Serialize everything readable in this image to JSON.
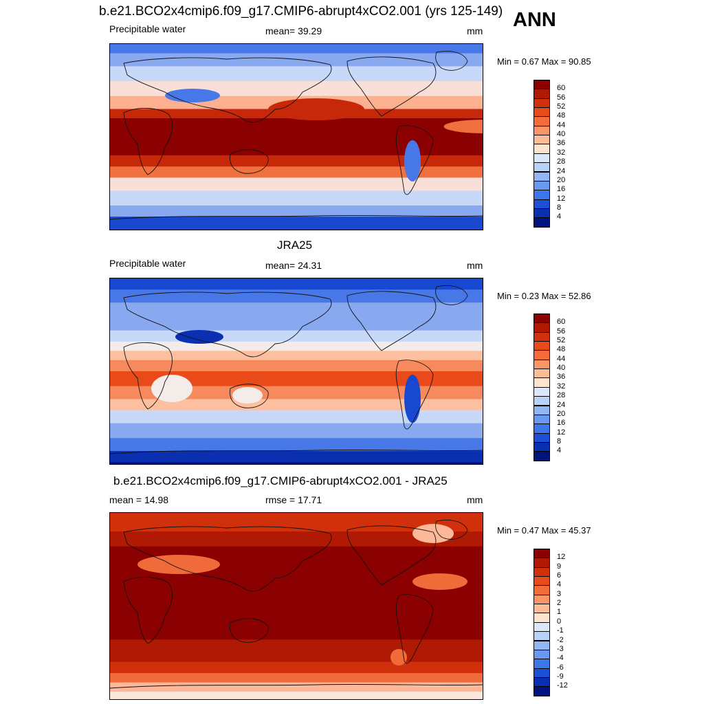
{
  "header": {
    "ann": "ANN"
  },
  "panels": [
    {
      "id": "model",
      "title": "b.e21.BCO2x4cmip6.f09_g17.CMIP6-abrupt4xCO2.001 (yrs 125-149)",
      "left_label": "Precipitable water",
      "center_label": "mean=  39.29",
      "units": "mm",
      "minmax": "Min =   0.67 Max =  90.85",
      "colorbar": {
        "ticks": [
          "60",
          "56",
          "52",
          "48",
          "44",
          "40",
          "36",
          "32",
          "28",
          "24",
          "20",
          "16",
          "12",
          "8",
          "4"
        ],
        "colors": [
          "#8b0000",
          "#b01a04",
          "#d0300c",
          "#e84a1a",
          "#f56c3b",
          "#fb9566",
          "#fcbc98",
          "#fde4d2",
          "#dbe8fb",
          "#b9d3f8",
          "#92b6f4",
          "#6898ef",
          "#3d76ea",
          "#1b4fd8",
          "#0a2fb0",
          "#00137f"
        ]
      },
      "map_palette": [
        "#8b0000",
        "#c8280a",
        "#f07040",
        "#fcb090",
        "#f8e0d8",
        "#c8d8f8",
        "#88a8f0",
        "#4878e8",
        "#1848d0",
        "#00137f"
      ]
    },
    {
      "id": "obs",
      "title": "JRA25",
      "left_label": "Precipitable water",
      "center_label": "mean=  24.31",
      "units": "mm",
      "minmax": "Min =   0.23 Max =  52.86",
      "colorbar": {
        "ticks": [
          "60",
          "56",
          "52",
          "48",
          "44",
          "40",
          "36",
          "32",
          "28",
          "24",
          "20",
          "16",
          "12",
          "8",
          "4"
        ],
        "colors": [
          "#8b0000",
          "#b01a04",
          "#d0300c",
          "#e84a1a",
          "#f56c3b",
          "#fb9566",
          "#fcbc98",
          "#fde4d2",
          "#dbe8fb",
          "#b9d3f8",
          "#92b6f4",
          "#6898ef",
          "#3d76ea",
          "#1b4fd8",
          "#0a2fb0",
          "#00137f"
        ]
      },
      "map_palette": [
        "#e84a1a",
        "#f78a5c",
        "#fcc0a0",
        "#f3ece8",
        "#c8d8f8",
        "#88a8f0",
        "#4878e8",
        "#1848d0",
        "#0a2fb0",
        "#00137f"
      ]
    },
    {
      "id": "diff",
      "title": "b.e21.BCO2x4cmip6.f09_g17.CMIP6-abrupt4xCO2.001 - JRA25",
      "left_label": "mean =  14.98",
      "center_label": "rmse =  17.71",
      "units": "mm",
      "minmax": "Min =   0.47 Max =  45.37",
      "colorbar": {
        "ticks": [
          "12",
          "9",
          "6",
          "4",
          "3",
          "2",
          "1",
          "0",
          "-1",
          "-2",
          "-3",
          "-4",
          "-6",
          "-9",
          "-12"
        ],
        "colors": [
          "#8b0000",
          "#b01a04",
          "#d0300c",
          "#e84a1a",
          "#f56c3b",
          "#fb9566",
          "#fcbc98",
          "#fde4d2",
          "#dbe8fb",
          "#b9d3f8",
          "#92b6f4",
          "#6898ef",
          "#3d76ea",
          "#1b4fd8",
          "#0a2fb0",
          "#00137f"
        ]
      },
      "map_palette": [
        "#8b0000",
        "#b01a04",
        "#d0300c",
        "#f06a3a",
        "#fcb898",
        "#fbe6dc"
      ]
    }
  ],
  "chart_data": [
    {
      "type": "heatmap",
      "title": "b.e21.BCO2x4cmip6.f09_g17.CMIP6-abrupt4xCO2.001 (yrs 125-149)",
      "variable": "Precipitable water",
      "units": "mm",
      "mean": 39.29,
      "min": 0.67,
      "max": 90.85,
      "contour_levels": [
        4,
        8,
        12,
        16,
        20,
        24,
        28,
        32,
        36,
        40,
        44,
        48,
        52,
        56,
        60
      ]
    },
    {
      "type": "heatmap",
      "title": "JRA25",
      "variable": "Precipitable water",
      "units": "mm",
      "mean": 24.31,
      "min": 0.23,
      "max": 52.86,
      "contour_levels": [
        4,
        8,
        12,
        16,
        20,
        24,
        28,
        32,
        36,
        40,
        44,
        48,
        52,
        56,
        60
      ]
    },
    {
      "type": "heatmap",
      "title": "b.e21.BCO2x4cmip6.f09_g17.CMIP6-abrupt4xCO2.001 - JRA25",
      "units": "mm",
      "mean": 14.98,
      "rmse": 17.71,
      "min": 0.47,
      "max": 45.37,
      "contour_levels": [
        -12,
        -9,
        -6,
        -4,
        -3,
        -2,
        -1,
        0,
        1,
        2,
        3,
        4,
        6,
        9,
        12
      ]
    }
  ]
}
